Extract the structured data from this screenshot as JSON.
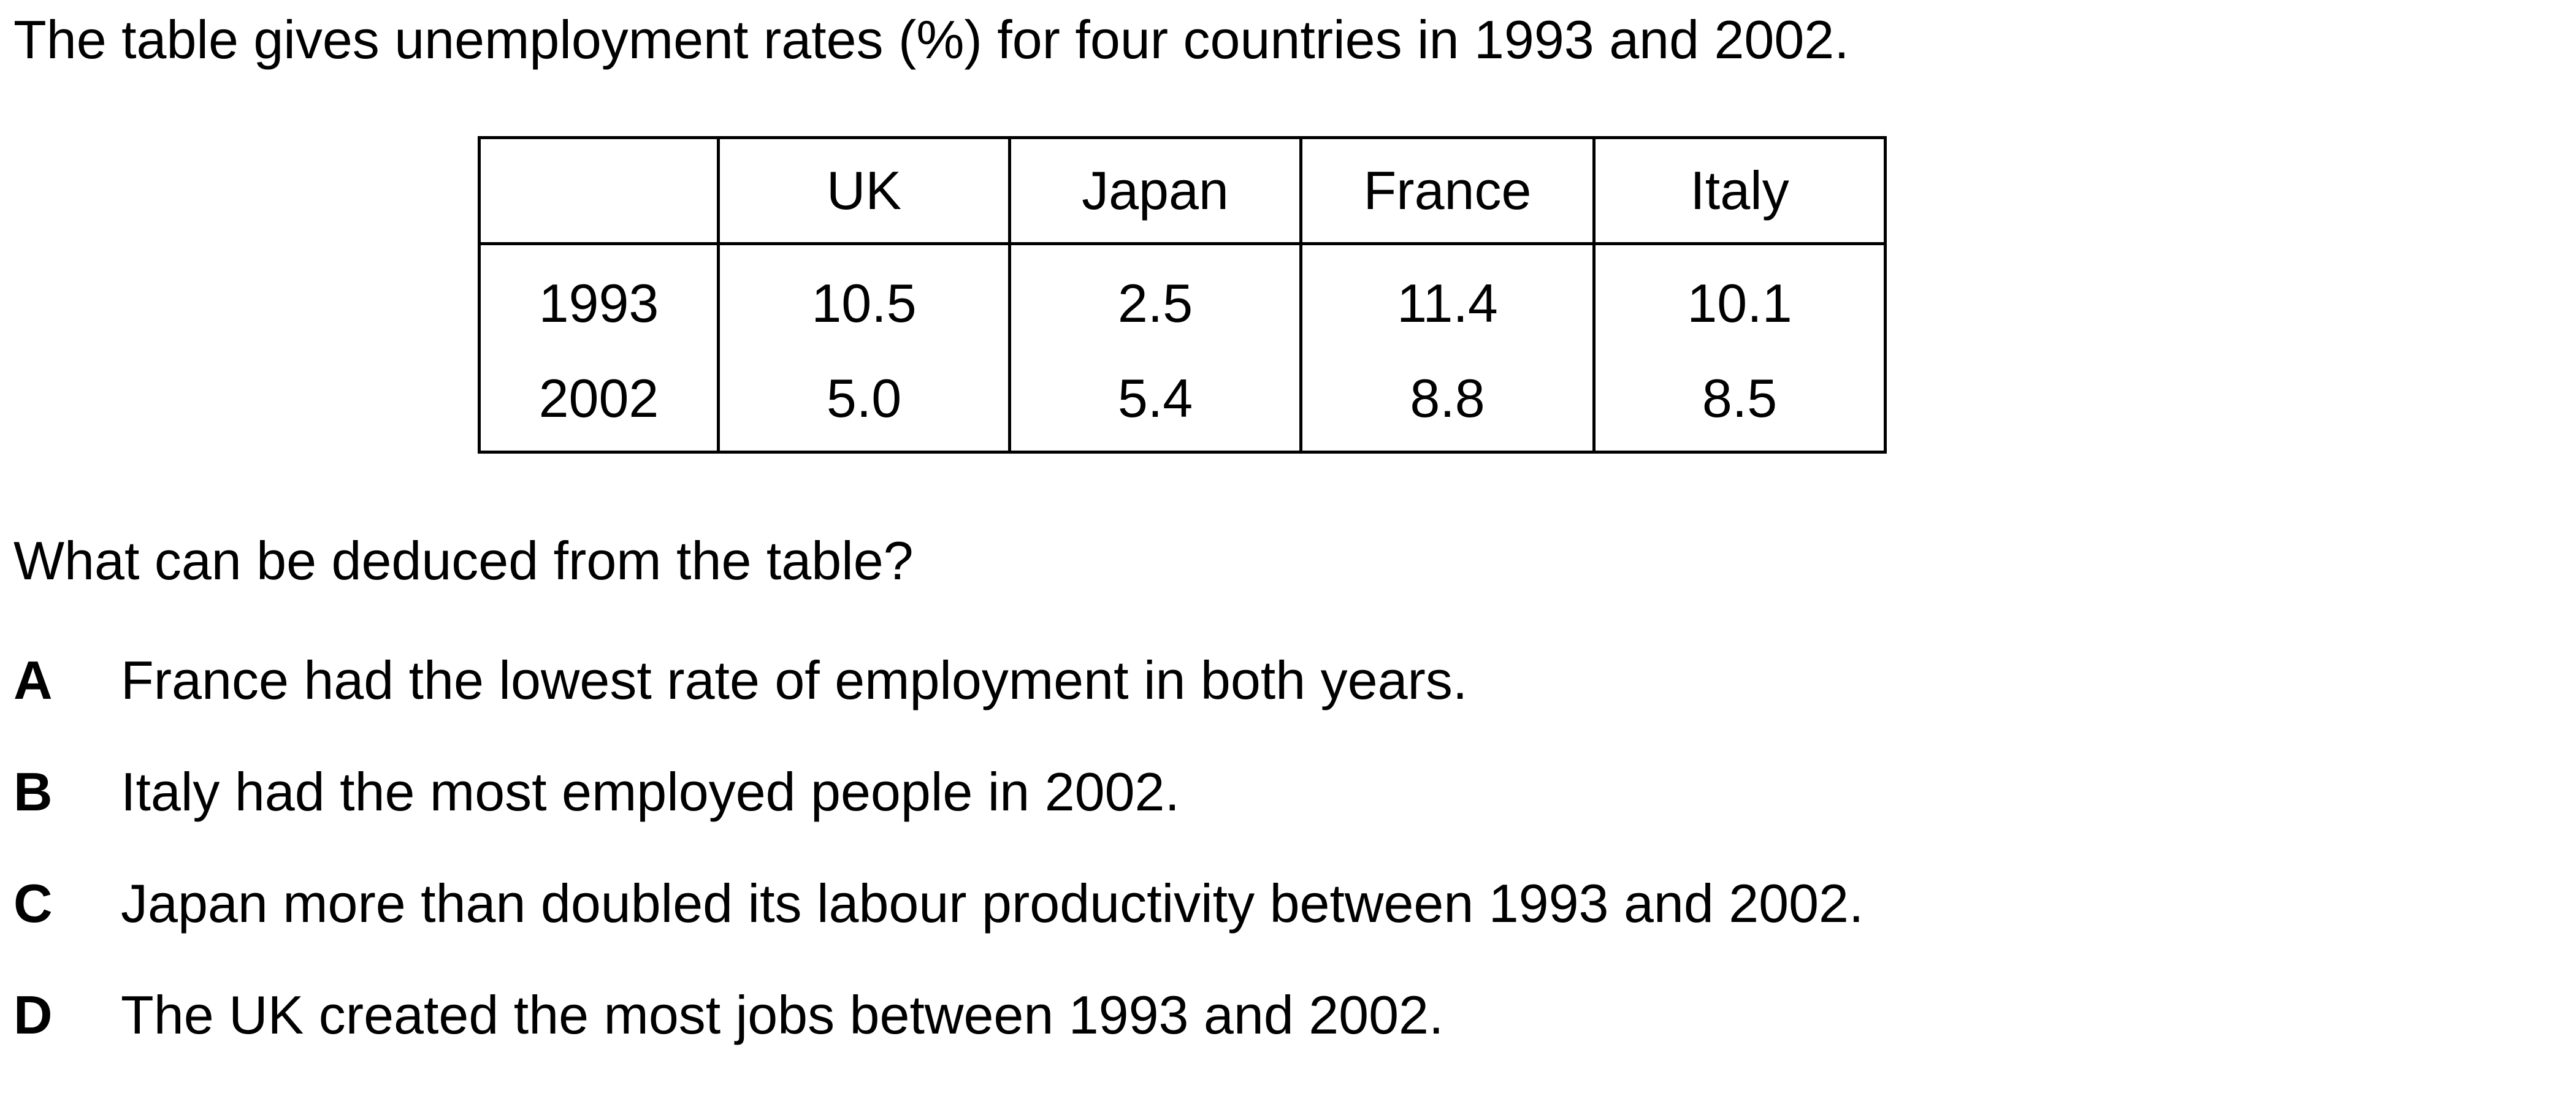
{
  "intro": "The table gives unemployment rates (%) for four countries in 1993 and 2002.",
  "table": {
    "corner": "",
    "columns": [
      "UK",
      "Japan",
      "France",
      "Italy"
    ],
    "rows": [
      {
        "year": "1993",
        "values": [
          "10.5",
          "2.5",
          "11.4",
          "10.1"
        ]
      },
      {
        "year": "2002",
        "values": [
          "5.0",
          "5.4",
          "8.8",
          "8.5"
        ]
      }
    ]
  },
  "question": "What can be deduced from the table?",
  "options": [
    {
      "letter": "A",
      "text": "France had the lowest rate of employment in both years."
    },
    {
      "letter": "B",
      "text": "Italy had the most employed people in 2002."
    },
    {
      "letter": "C",
      "text": "Japan more than doubled its labour productivity between 1993 and 2002."
    },
    {
      "letter": "D",
      "text": "The UK created the most jobs between 1993 and 2002."
    }
  ]
}
